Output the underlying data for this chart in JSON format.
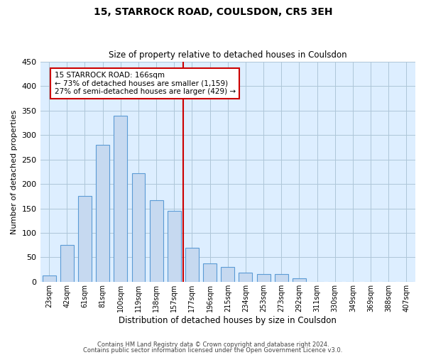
{
  "title1": "15, STARROCK ROAD, COULSDON, CR5 3EH",
  "title2": "Size of property relative to detached houses in Coulsdon",
  "xlabel": "Distribution of detached houses by size in Coulsdon",
  "ylabel": "Number of detached properties",
  "bar_labels": [
    "23sqm",
    "42sqm",
    "61sqm",
    "81sqm",
    "100sqm",
    "119sqm",
    "138sqm",
    "157sqm",
    "177sqm",
    "196sqm",
    "215sqm",
    "234sqm",
    "253sqm",
    "273sqm",
    "292sqm",
    "311sqm",
    "330sqm",
    "349sqm",
    "369sqm",
    "388sqm",
    "407sqm"
  ],
  "bar_heights": [
    13,
    75,
    175,
    280,
    340,
    222,
    167,
    145,
    70,
    38,
    30,
    18,
    15,
    15,
    7,
    0,
    0,
    0,
    0,
    0,
    0
  ],
  "bar_color": "#c6d9f0",
  "bar_edge_color": "#5b9bd5",
  "vline_x_bar_idx": 7,
  "vline_color": "#cc0000",
  "annotation_title": "15 STARROCK ROAD: 166sqm",
  "annotation_line1": "← 73% of detached houses are smaller (1,159)",
  "annotation_line2": "27% of semi-detached houses are larger (429) →",
  "annotation_box_color": "#ffffff",
  "annotation_box_edge": "#cc0000",
  "ylim": [
    0,
    450
  ],
  "yticks": [
    0,
    50,
    100,
    150,
    200,
    250,
    300,
    350,
    400,
    450
  ],
  "footer1": "Contains HM Land Registry data © Crown copyright and database right 2024.",
  "footer2": "Contains public sector information licensed under the Open Government Licence v3.0.",
  "bg_color": "#ffffff",
  "plot_bg_color": "#ddeeff",
  "grid_color": "#aec6d8"
}
